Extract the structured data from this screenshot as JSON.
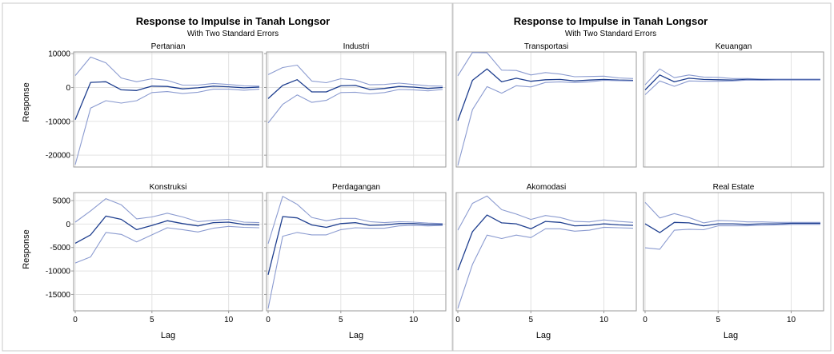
{
  "figures": [
    {
      "title": "Response to Impulse in Tanah Longsor",
      "subtitle": "With Two Standard Errors"
    },
    {
      "title": "Response to Impulse in Tanah Longsor",
      "subtitle": "With Two Standard Errors"
    }
  ],
  "axis_labels": {
    "y": "Response",
    "x": "Lag"
  },
  "colors": {
    "response_line": "#1f3f8f",
    "error_band": "#8b9bd0",
    "grid": "#e2e2e2",
    "frame": "#9a9a9a"
  },
  "chart_data": [
    {
      "type": "line",
      "title": "Pertanian",
      "x": [
        0,
        1,
        2,
        3,
        4,
        5,
        6,
        7,
        8,
        9,
        10,
        11,
        12
      ],
      "xlim": [
        0,
        12
      ],
      "ylim": [
        -23500,
        10500
      ],
      "x_ticks": [
        0,
        5,
        10
      ],
      "y_ticks": [
        10000,
        0,
        -10000,
        -20000
      ],
      "y_tick_labels": [
        "10000",
        "0",
        "-10000",
        "-20000"
      ],
      "series": [
        {
          "role": "upper",
          "values": [
            3500,
            9000,
            7300,
            2800,
            1700,
            2600,
            2100,
            700,
            700,
            1200,
            900,
            500,
            400
          ]
        },
        {
          "role": "response",
          "values": [
            -9500,
            1500,
            1700,
            -700,
            -900,
            400,
            300,
            -400,
            -100,
            400,
            200,
            -100,
            100
          ]
        },
        {
          "role": "lower",
          "values": [
            -22800,
            -6100,
            -3900,
            -4600,
            -3900,
            -1500,
            -1200,
            -1800,
            -1400,
            -500,
            -500,
            -800,
            -500
          ]
        }
      ]
    },
    {
      "type": "line",
      "title": "Industri",
      "x": [
        0,
        1,
        2,
        3,
        4,
        5,
        6,
        7,
        8,
        9,
        10,
        11,
        12
      ],
      "xlim": [
        0,
        12
      ],
      "ylim": [
        -23500,
        10500
      ],
      "x_ticks": [
        0,
        5,
        10
      ],
      "y_ticks": [
        10000,
        0,
        -10000,
        -20000
      ],
      "series": [
        {
          "role": "upper",
          "values": [
            3800,
            5900,
            6600,
            1900,
            1400,
            2600,
            2200,
            800,
            900,
            1300,
            900,
            500,
            400
          ]
        },
        {
          "role": "response",
          "values": [
            -3300,
            600,
            2300,
            -1300,
            -1300,
            500,
            600,
            -600,
            -300,
            300,
            100,
            -300,
            0
          ]
        },
        {
          "role": "lower",
          "values": [
            -10500,
            -5000,
            -2200,
            -4400,
            -3800,
            -1500,
            -1400,
            -1900,
            -1500,
            -600,
            -700,
            -1000,
            -600
          ]
        }
      ]
    },
    {
      "type": "line",
      "title": "Transportasi",
      "x": [
        0,
        1,
        2,
        3,
        4,
        5,
        6,
        7,
        8,
        9,
        10,
        11,
        12
      ],
      "xlim": [
        0,
        12
      ],
      "ylim": [
        -27000,
        11500
      ],
      "x_ticks": [
        0,
        5,
        10
      ],
      "y_ticks": [],
      "series": [
        {
          "role": "upper",
          "values": [
            3500,
            11300,
            11200,
            5400,
            5300,
            3800,
            4600,
            4100,
            3200,
            3300,
            3400,
            2800,
            2600
          ]
        },
        {
          "role": "response",
          "values": [
            -11500,
            2000,
            5800,
            1500,
            2700,
            1700,
            2200,
            2300,
            1800,
            2100,
            2300,
            2100,
            2000
          ]
        },
        {
          "role": "lower",
          "values": [
            -26500,
            -7800,
            -100,
            -2300,
            200,
            -200,
            1300,
            1500,
            1200,
            1500,
            2000,
            1900,
            1800
          ]
        }
      ]
    },
    {
      "type": "line",
      "title": "Keuangan",
      "x": [
        0,
        1,
        2,
        3,
        4,
        5,
        6,
        7,
        8,
        9,
        10,
        11,
        12
      ],
      "xlim": [
        0,
        12
      ],
      "ylim": [
        -27000,
        11500
      ],
      "x_ticks": [
        0,
        5,
        10
      ],
      "y_ticks": [],
      "series": [
        {
          "role": "upper",
          "values": [
            500,
            5800,
            2900,
            3800,
            3100,
            3000,
            2600,
            2600,
            2400,
            2400,
            2400,
            2400,
            2400
          ]
        },
        {
          "role": "response",
          "values": [
            -1200,
            3800,
            1500,
            2700,
            2300,
            2200,
            2100,
            2300,
            2200,
            2200,
            2200,
            2200,
            2200
          ]
        },
        {
          "role": "lower",
          "values": [
            -2800,
            1800,
            0,
            1800,
            1700,
            1700,
            1800,
            2100,
            2000,
            2100,
            2100,
            2100,
            2100
          ]
        }
      ]
    },
    {
      "type": "line",
      "title": "Konstruksi",
      "x": [
        0,
        1,
        2,
        3,
        4,
        5,
        6,
        7,
        8,
        9,
        10,
        11,
        12
      ],
      "xlim": [
        0,
        12
      ],
      "ylim": [
        -18500,
        6700
      ],
      "x_ticks": [
        0,
        5,
        10
      ],
      "y_ticks": [
        5000,
        0,
        -5000,
        -10000,
        -15000
      ],
      "y_tick_labels": [
        "5000",
        "0",
        "-5000",
        "-10000",
        "-15000"
      ],
      "series": [
        {
          "role": "upper",
          "values": [
            400,
            2800,
            5400,
            4100,
            1100,
            1500,
            2300,
            1500,
            500,
            800,
            1000,
            400,
            300
          ]
        },
        {
          "role": "response",
          "values": [
            -4100,
            -2300,
            1700,
            1000,
            -1200,
            -300,
            700,
            100,
            -400,
            300,
            400,
            -100,
            -200
          ]
        },
        {
          "role": "lower",
          "values": [
            -8300,
            -7000,
            -1800,
            -2200,
            -3800,
            -2300,
            -800,
            -1200,
            -1700,
            -900,
            -500,
            -700,
            -800
          ]
        }
      ]
    },
    {
      "type": "line",
      "title": "Perdagangan",
      "x": [
        0,
        1,
        2,
        3,
        4,
        5,
        6,
        7,
        8,
        9,
        10,
        11,
        12
      ],
      "xlim": [
        0,
        12
      ],
      "ylim": [
        -18500,
        6700
      ],
      "x_ticks": [
        0,
        5,
        10
      ],
      "y_ticks": [
        5000,
        0,
        -5000,
        -10000,
        -15000
      ],
      "series": [
        {
          "role": "upper",
          "values": [
            -4200,
            5900,
            4200,
            1400,
            700,
            1200,
            1200,
            500,
            300,
            500,
            400,
            200,
            100
          ]
        },
        {
          "role": "response",
          "values": [
            -10800,
            1600,
            1300,
            -200,
            -700,
            100,
            300,
            -300,
            -200,
            100,
            100,
            -100,
            -100
          ]
        },
        {
          "role": "lower",
          "values": [
            -18000,
            -2600,
            -1800,
            -2300,
            -2300,
            -1200,
            -800,
            -900,
            -900,
            -400,
            -300,
            -400,
            -300
          ]
        }
      ]
    },
    {
      "type": "line",
      "title": "Akomodasi",
      "x": [
        0,
        1,
        2,
        3,
        4,
        5,
        6,
        7,
        8,
        9,
        10,
        11,
        12
      ],
      "xlim": [
        0,
        12
      ],
      "ylim": [
        -18000,
        6200
      ],
      "x_ticks": [
        0,
        5,
        10
      ],
      "y_ticks": [],
      "series": [
        {
          "role": "upper",
          "values": [
            -1500,
            4000,
            5500,
            2700,
            1800,
            700,
            1500,
            1100,
            300,
            200,
            600,
            300,
            100
          ]
        },
        {
          "role": "response",
          "values": [
            -9700,
            -1800,
            1600,
            0,
            -200,
            -1200,
            300,
            100,
            -600,
            -500,
            -200,
            -400,
            -500
          ]
        },
        {
          "role": "lower",
          "values": [
            -17500,
            -8500,
            -2500,
            -3200,
            -2500,
            -3000,
            -1200,
            -1200,
            -1700,
            -1500,
            -900,
            -1000,
            -1100
          ]
        }
      ]
    },
    {
      "type": "line",
      "title": "Real Estate",
      "x": [
        0,
        1,
        2,
        3,
        4,
        5,
        6,
        7,
        8,
        9,
        10,
        11,
        12
      ],
      "xlim": [
        0,
        12
      ],
      "ylim": [
        -18000,
        6200
      ],
      "x_ticks": [
        0,
        5,
        10
      ],
      "y_ticks": [],
      "series": [
        {
          "role": "upper",
          "values": [
            4200,
            1000,
            1900,
            1100,
            0,
            500,
            400,
            200,
            200,
            100,
            100,
            100,
            100
          ]
        },
        {
          "role": "response",
          "values": [
            -200,
            -2000,
            100,
            0,
            -600,
            -200,
            -200,
            -300,
            -200,
            -200,
            -100,
            -100,
            -100
          ]
        },
        {
          "role": "lower",
          "values": [
            -5100,
            -5400,
            -1500,
            -1300,
            -1400,
            -600,
            -600,
            -600,
            -500,
            -400,
            -300,
            -300,
            -300
          ]
        }
      ]
    }
  ]
}
